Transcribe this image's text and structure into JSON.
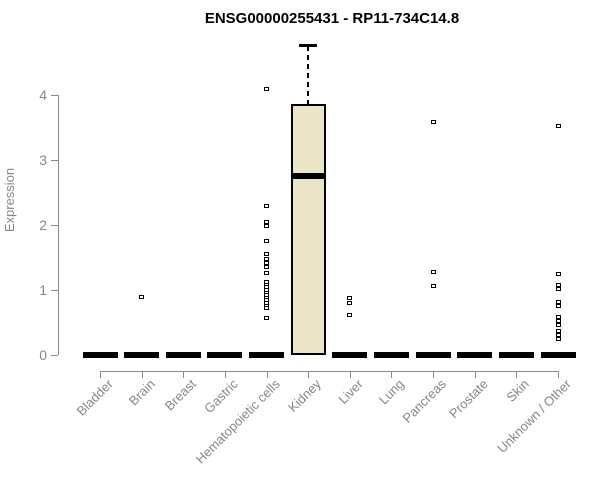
{
  "figure": {
    "title": "ENSG00000255431 - RP11-734C14.8"
  },
  "chart_data": {
    "type": "boxplot",
    "title": "ENSG00000255431 - RP11-734C14.8",
    "xlabel": "",
    "ylabel": "Expression",
    "ylim": [
      0,
      4.8
    ],
    "yticks": [
      0,
      1,
      2,
      3,
      4
    ],
    "grid": false,
    "legend": "none",
    "categories": [
      "Bladder",
      "Brain",
      "Breast",
      "Gastric",
      "Hematopoietic cells",
      "Kidney",
      "Liver",
      "Lung",
      "Pancreas",
      "Prostate",
      "Skin",
      "Unknown / Other"
    ],
    "boxes": [
      {
        "category": "Bladder",
        "q1": 0,
        "median": 0,
        "q3": 0,
        "whisker_low": 0,
        "whisker_high": 0,
        "outliers": []
      },
      {
        "category": "Brain",
        "q1": 0,
        "median": 0,
        "q3": 0,
        "whisker_low": 0,
        "whisker_high": 0,
        "outliers": [
          0.9
        ]
      },
      {
        "category": "Breast",
        "q1": 0,
        "median": 0,
        "q3": 0,
        "whisker_low": 0,
        "whisker_high": 0,
        "outliers": []
      },
      {
        "category": "Gastric",
        "q1": 0,
        "median": 0,
        "q3": 0,
        "whisker_low": 0,
        "whisker_high": 0,
        "outliers": []
      },
      {
        "category": "Hematopoietic cells",
        "q1": 0,
        "median": 0,
        "q3": 0,
        "whisker_low": 0,
        "whisker_high": 0,
        "outliers": [
          4.1,
          2.3,
          2.05,
          1.98,
          1.75,
          1.55,
          1.48,
          1.42,
          1.35,
          1.26,
          1.12,
          1.08,
          1.04,
          1.0,
          0.96,
          0.92,
          0.88,
          0.84,
          0.8,
          0.76,
          0.72,
          0.57
        ]
      },
      {
        "category": "Kidney",
        "q1": 0,
        "median": 2.75,
        "q3": 3.86,
        "whisker_low": 0,
        "whisker_high": 4.8,
        "outliers": []
      },
      {
        "category": "Liver",
        "q1": 0,
        "median": 0,
        "q3": 0,
        "whisker_low": 0,
        "whisker_high": 0,
        "outliers": [
          0.88,
          0.8,
          0.62
        ]
      },
      {
        "category": "Lung",
        "q1": 0,
        "median": 0,
        "q3": 0,
        "whisker_low": 0,
        "whisker_high": 0,
        "outliers": []
      },
      {
        "category": "Pancreas",
        "q1": 0,
        "median": 0,
        "q3": 0,
        "whisker_low": 0,
        "whisker_high": 0,
        "outliers": [
          3.58,
          1.28,
          1.06
        ]
      },
      {
        "category": "Prostate",
        "q1": 0,
        "median": 0,
        "q3": 0,
        "whisker_low": 0,
        "whisker_high": 0,
        "outliers": []
      },
      {
        "category": "Skin",
        "q1": 0,
        "median": 0,
        "q3": 0,
        "whisker_low": 0,
        "whisker_high": 0,
        "outliers": []
      },
      {
        "category": "Unknown / Other",
        "q1": 0,
        "median": 0,
        "q3": 0,
        "whisker_low": 0,
        "whisker_high": 0,
        "outliers": [
          3.52,
          1.25,
          1.07,
          1.02,
          0.82,
          0.76,
          0.58,
          0.52,
          0.46,
          0.37,
          0.31,
          0.25
        ]
      }
    ],
    "colors": {
      "box_fill": "#EAE5C7",
      "box_border": "#000000",
      "median": "#000000",
      "outlier_marker": "#000000",
      "axis": "#8a8a8a",
      "tick_text": "#878787",
      "title_text": "#000000"
    }
  }
}
